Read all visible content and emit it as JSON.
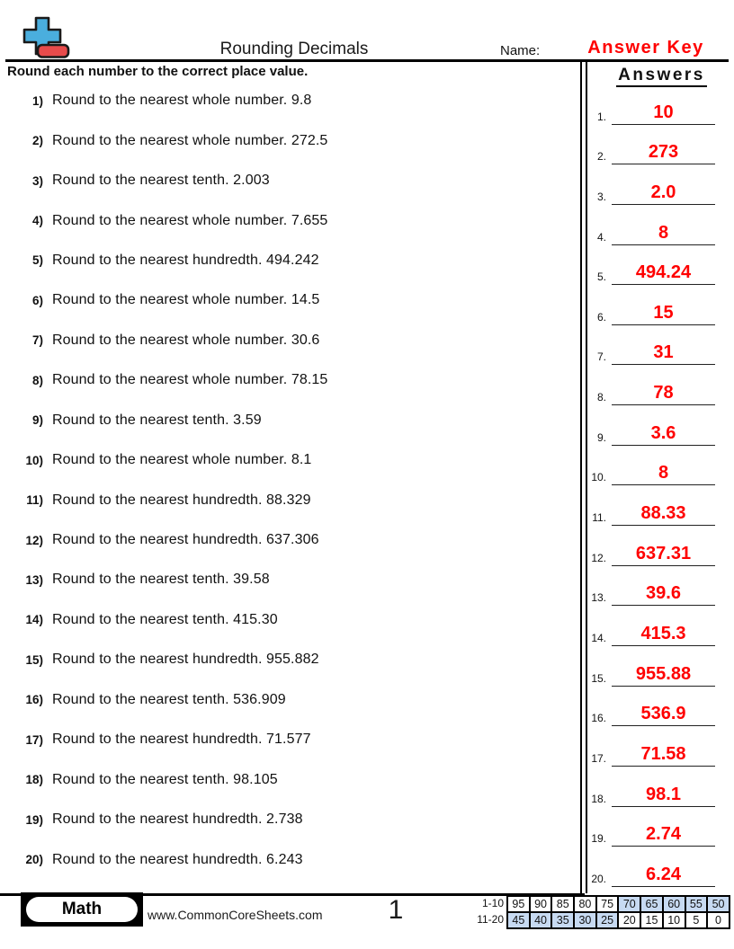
{
  "page": {
    "title": "Rounding Decimals",
    "name_label": "Name:",
    "name_value": "Answer Key",
    "instruction": "Round each number to the correct place value.",
    "answers_title": "Answers"
  },
  "questions": [
    {
      "num": "1)",
      "text": "Round to the nearest whole number. 9.8"
    },
    {
      "num": "2)",
      "text": "Round to the nearest whole number. 272.5"
    },
    {
      "num": "3)",
      "text": "Round to the nearest tenth. 2.003"
    },
    {
      "num": "4)",
      "text": "Round to the nearest whole number. 7.655"
    },
    {
      "num": "5)",
      "text": "Round to the nearest hundredth. 494.242"
    },
    {
      "num": "6)",
      "text": "Round to the nearest whole number. 14.5"
    },
    {
      "num": "7)",
      "text": "Round to the nearest whole number. 30.6"
    },
    {
      "num": "8)",
      "text": "Round to the nearest whole number. 78.15"
    },
    {
      "num": "9)",
      "text": "Round to the nearest tenth. 3.59"
    },
    {
      "num": "10)",
      "text": "Round to the nearest whole number. 8.1"
    },
    {
      "num": "11)",
      "text": "Round to the nearest hundredth. 88.329"
    },
    {
      "num": "12)",
      "text": "Round to the nearest hundredth. 637.306"
    },
    {
      "num": "13)",
      "text": "Round to the nearest tenth. 39.58"
    },
    {
      "num": "14)",
      "text": "Round to the nearest tenth. 415.30"
    },
    {
      "num": "15)",
      "text": "Round to the nearest hundredth. 955.882"
    },
    {
      "num": "16)",
      "text": "Round to the nearest tenth. 536.909"
    },
    {
      "num": "17)",
      "text": "Round to the nearest hundredth. 71.577"
    },
    {
      "num": "18)",
      "text": "Round to the nearest tenth. 98.105"
    },
    {
      "num": "19)",
      "text": "Round to the nearest hundredth. 2.738"
    },
    {
      "num": "20)",
      "text": "Round to the nearest hundredth. 6.243"
    }
  ],
  "answers": [
    {
      "num": "1.",
      "value": "10"
    },
    {
      "num": "2.",
      "value": "273"
    },
    {
      "num": "3.",
      "value": "2.0"
    },
    {
      "num": "4.",
      "value": "8"
    },
    {
      "num": "5.",
      "value": "494.24"
    },
    {
      "num": "6.",
      "value": "15"
    },
    {
      "num": "7.",
      "value": "31"
    },
    {
      "num": "8.",
      "value": "78"
    },
    {
      "num": "9.",
      "value": "3.6"
    },
    {
      "num": "10.",
      "value": "8"
    },
    {
      "num": "11.",
      "value": "88.33"
    },
    {
      "num": "12.",
      "value": "637.31"
    },
    {
      "num": "13.",
      "value": "39.6"
    },
    {
      "num": "14.",
      "value": "415.3"
    },
    {
      "num": "15.",
      "value": "955.88"
    },
    {
      "num": "16.",
      "value": "536.9"
    },
    {
      "num": "17.",
      "value": "71.58"
    },
    {
      "num": "18.",
      "value": "98.1"
    },
    {
      "num": "19.",
      "value": "2.74"
    },
    {
      "num": "20.",
      "value": "6.24"
    }
  ],
  "footer": {
    "subject_badge": "Math",
    "website": "www.CommonCoreSheets.com",
    "page_number": "1",
    "score_table": {
      "rows": [
        {
          "label": "1-10",
          "values": [
            "95",
            "90",
            "85",
            "80",
            "75",
            "70",
            "65",
            "60",
            "55",
            "50"
          ],
          "shaded": [
            false,
            false,
            false,
            false,
            false,
            true,
            true,
            true,
            true,
            true
          ]
        },
        {
          "label": "11-20",
          "values": [
            "45",
            "40",
            "35",
            "30",
            "25",
            "20",
            "15",
            "10",
            "5",
            "0"
          ],
          "shaded": [
            true,
            true,
            true,
            true,
            true,
            false,
            false,
            false,
            false,
            false
          ]
        }
      ]
    }
  },
  "icons": {
    "logo": "plus-minus-icon"
  },
  "colors": {
    "answer_text": "#ff0000",
    "score_shade": "#c7daf2",
    "logo_plus": "#4aaede",
    "logo_minus": "#e84b4b"
  }
}
